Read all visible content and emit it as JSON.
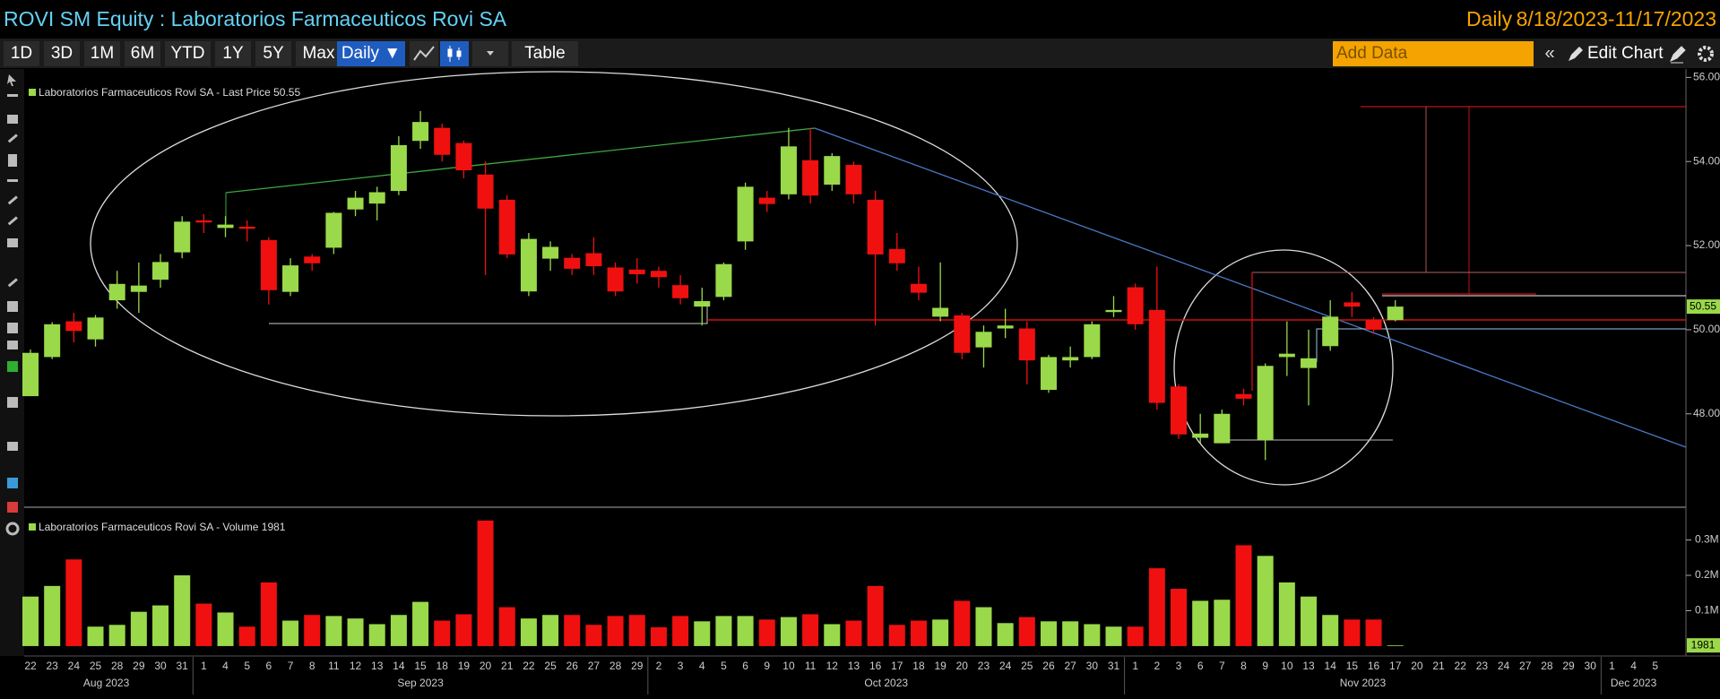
{
  "toolbar": {
    "ranges": [
      "1D",
      "3D",
      "1M",
      "6M",
      "YTD",
      "1Y",
      "5Y",
      "Max"
    ],
    "frequency_button": "Daily ▼",
    "table": "Table",
    "add_data": "Add Data",
    "edit_chart": "Edit Chart"
  },
  "chart_data": [
    {
      "type": "candlestick",
      "title": "ROVI SM Equity : Laboratorios Farmaceuticos Rovi SA",
      "frequency": "Daily",
      "date_range": "8/18/2023-11/17/2023",
      "legend": "Laboratorios Farmaceuticos Rovi SA - Last Price 50.55",
      "categories": [
        "22",
        "23",
        "24",
        "25",
        "28",
        "29",
        "30",
        "31",
        "1",
        "4",
        "5",
        "6",
        "7",
        "8",
        "11",
        "12",
        "13",
        "14",
        "15",
        "18",
        "19",
        "20",
        "21",
        "22",
        "25",
        "26",
        "27",
        "28",
        "29",
        "2",
        "3",
        "4",
        "5",
        "6",
        "9",
        "10",
        "11",
        "12",
        "13",
        "16",
        "17",
        "18",
        "19",
        "20",
        "23",
        "24",
        "25",
        "26",
        "27",
        "30",
        "31",
        "1",
        "2",
        "3",
        "6",
        "7",
        "8",
        "9",
        "10",
        "13",
        "14",
        "15",
        "16",
        "17",
        "20",
        "21",
        "22",
        "23",
        "24",
        "27",
        "28",
        "29",
        "30",
        "1",
        "4",
        "5"
      ],
      "months": [
        "Aug 2023",
        "Sep 2023",
        "Oct 2023",
        "Nov 2023",
        "Dec 2023"
      ],
      "open": [
        48.42,
        49.35,
        50.2,
        49.77,
        50.7,
        50.9,
        51.19,
        51.84,
        52.6,
        52.42,
        52.45,
        52.13,
        50.9,
        51.74,
        51.95,
        52.86,
        53.0,
        53.3,
        54.49,
        54.8,
        54.44,
        53.69,
        53.09,
        50.91,
        51.69,
        51.71,
        51.82,
        51.48,
        51.43,
        51.4,
        51.06,
        50.55,
        50.78,
        52.1,
        53.14,
        53.22,
        54.03,
        53.45,
        53.92,
        53.09,
        51.92,
        51.09,
        50.31,
        50.34,
        49.58,
        50.03,
        50.03,
        48.57,
        49.27,
        49.35,
        50.42,
        51.01,
        50.47,
        48.65,
        47.43,
        47.3,
        48.47,
        47.38,
        49.35,
        49.09,
        49.61,
        50.65,
        50.23,
        50.23,
        null,
        null,
        null,
        null,
        null,
        null,
        null,
        null,
        null,
        null,
        null,
        null
      ],
      "high": [
        49.53,
        50.18,
        50.4,
        50.35,
        51.4,
        51.6,
        51.8,
        52.7,
        52.75,
        52.7,
        52.6,
        52.2,
        51.7,
        51.8,
        52.8,
        53.3,
        53.4,
        54.6,
        55.2,
        54.9,
        54.5,
        54.0,
        53.2,
        52.3,
        52.1,
        51.8,
        52.2,
        51.6,
        51.7,
        51.5,
        51.3,
        51.0,
        51.6,
        53.5,
        53.3,
        54.8,
        54.8,
        54.2,
        54.0,
        53.3,
        52.3,
        51.5,
        51.6,
        50.4,
        50.1,
        50.5,
        50.2,
        49.4,
        49.6,
        50.2,
        50.8,
        51.1,
        51.5,
        48.7,
        48.0,
        48.1,
        48.6,
        49.2,
        50.2,
        50.0,
        50.7,
        50.9,
        50.3,
        50.7,
        null,
        null,
        null,
        null,
        null,
        null,
        null,
        null,
        null,
        null,
        null,
        null
      ],
      "low": [
        48.42,
        49.3,
        49.7,
        49.6,
        50.5,
        50.4,
        51.0,
        51.7,
        52.3,
        52.2,
        52.1,
        50.6,
        50.8,
        51.4,
        51.8,
        52.7,
        52.6,
        53.2,
        54.3,
        54.0,
        53.6,
        51.3,
        51.7,
        50.8,
        51.4,
        51.3,
        51.3,
        50.8,
        51.1,
        51.0,
        50.6,
        50.1,
        50.7,
        51.9,
        52.8,
        53.1,
        53.0,
        53.3,
        53.0,
        50.1,
        51.4,
        50.7,
        50.2,
        49.3,
        49.1,
        49.8,
        48.7,
        48.5,
        49.1,
        49.3,
        50.3,
        50.0,
        48.1,
        47.4,
        47.3,
        47.3,
        48.2,
        46.9,
        48.9,
        48.2,
        49.5,
        50.3,
        49.9,
        50.2,
        null,
        null,
        null,
        null,
        null,
        null,
        null,
        null,
        null,
        null,
        null,
        null
      ],
      "close": [
        49.45,
        50.13,
        49.97,
        50.29,
        51.09,
        51.05,
        51.61,
        52.57,
        52.55,
        52.5,
        52.4,
        50.94,
        51.53,
        51.58,
        52.78,
        53.14,
        53.27,
        54.39,
        54.94,
        54.16,
        53.79,
        52.88,
        51.79,
        52.16,
        51.97,
        51.45,
        51.51,
        50.91,
        51.32,
        51.25,
        50.75,
        50.68,
        51.56,
        53.4,
        52.99,
        54.36,
        53.19,
        54.13,
        53.22,
        51.79,
        51.58,
        50.88,
        50.52,
        49.45,
        49.95,
        50.1,
        49.27,
        49.35,
        49.35,
        50.13,
        50.47,
        50.13,
        48.26,
        47.51,
        47.53,
        48.0,
        48.36,
        49.14,
        49.43,
        49.32,
        50.31,
        50.55,
        50.0,
        50.55,
        null,
        null,
        null,
        null,
        null,
        null,
        null,
        null,
        null,
        null,
        null,
        null
      ],
      "up_color": "#9ad94a",
      "down_color": "#f01010",
      "ylim": [
        45.8,
        56.2
      ],
      "yticks": [
        {
          "value": 48,
          "label": "48.00"
        },
        {
          "value": 50,
          "label": "50.00"
        },
        {
          "value": 52,
          "label": "52.00"
        },
        {
          "value": 54,
          "label": "54.00"
        },
        {
          "value": 56,
          "label": "56.00"
        }
      ],
      "grid": false
    },
    {
      "type": "bar",
      "legend": "Laboratorios Farmaceuticos Rovi SA - Volume 1981",
      "values": [
        140000,
        170000,
        245000,
        55000,
        60000,
        97000,
        115000,
        200000,
        120000,
        95000,
        55000,
        180000,
        72000,
        88000,
        85000,
        78000,
        62000,
        88000,
        125000,
        72000,
        90000,
        355000,
        110000,
        78000,
        88000,
        88000,
        60000,
        85000,
        88000,
        53000,
        85000,
        70000,
        85000,
        85000,
        75000,
        82000,
        90000,
        62000,
        72000,
        170000,
        60000,
        72000,
        75000,
        128000,
        110000,
        65000,
        82000,
        70000,
        70000,
        62000,
        55000,
        55000,
        220000,
        162000,
        128000,
        131000,
        285000,
        255000,
        180000,
        140000,
        88000,
        75000,
        75000,
        1981,
        null,
        null,
        null,
        null,
        null,
        null,
        null,
        null,
        null,
        null,
        null,
        null
      ],
      "ylim": [
        -28000,
        385000
      ],
      "yticks": [
        {
          "value": 100000,
          "label": "0.1M"
        },
        {
          "value": 200000,
          "label": "0.2M"
        },
        {
          "value": 300000,
          "label": "0.3M"
        }
      ],
      "grid": false
    }
  ]
}
